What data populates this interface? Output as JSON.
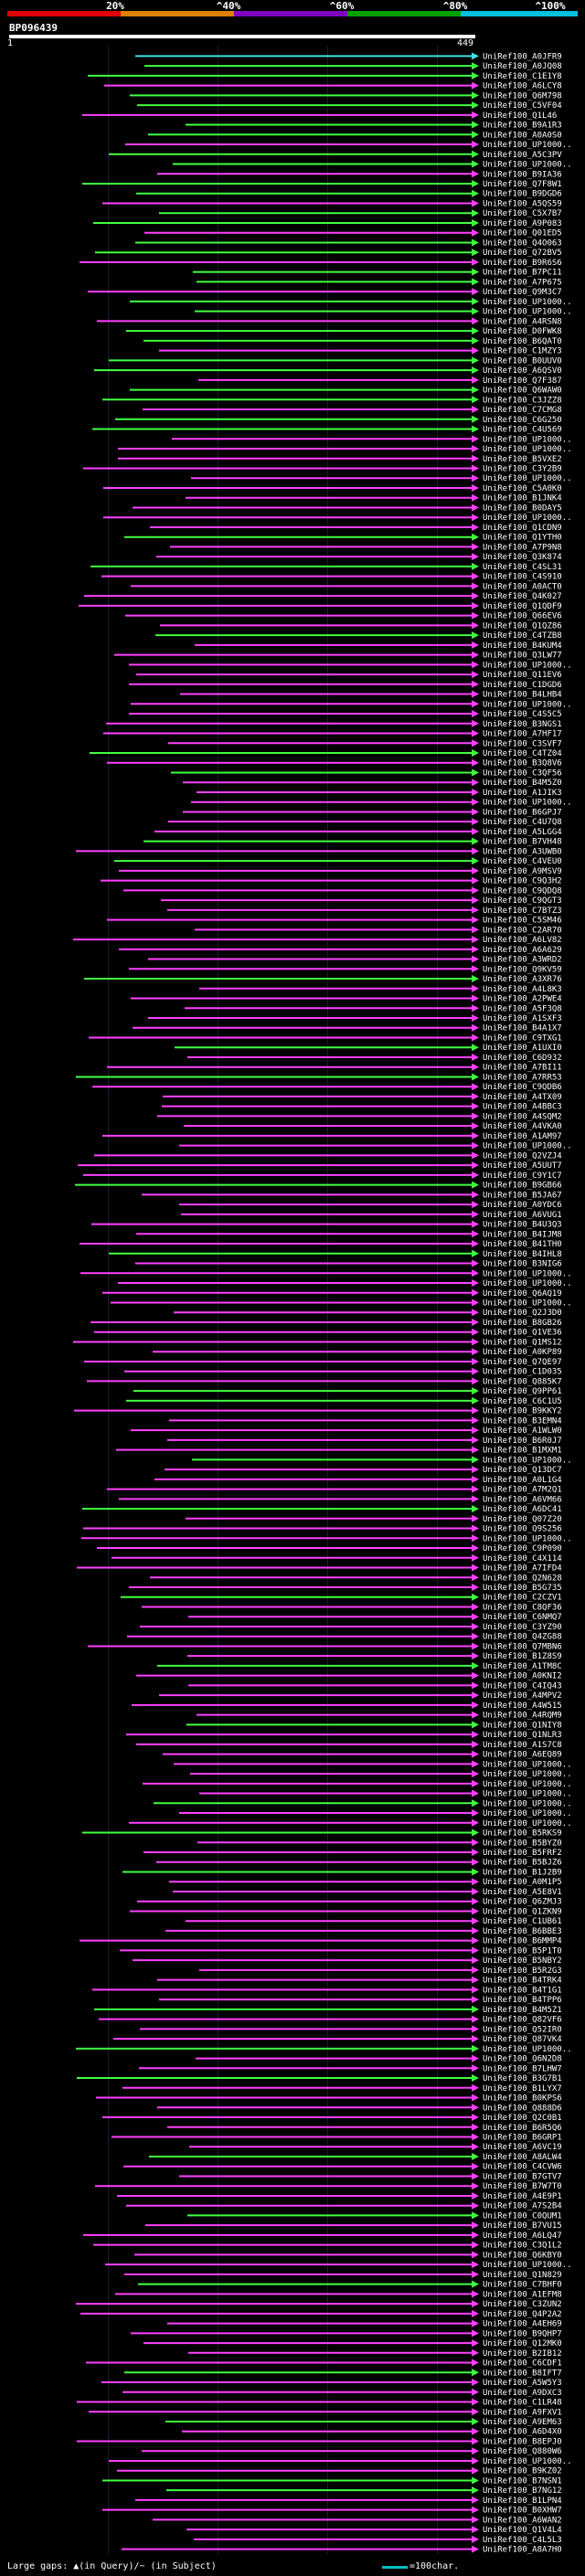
{
  "query": {
    "name": "BP096439",
    "start": "1",
    "end": "449"
  },
  "scale": {
    "labels": [
      "20%",
      "^40%",
      "^60%",
      "^80%",
      "^100%"
    ],
    "colors": [
      "#e00000",
      "#e08000",
      "#8000c0",
      "#00a000",
      "#00c0e0"
    ]
  },
  "legend": {
    "text": "Large gaps: ▲(in Query)/~ (in Subject)",
    "scale_text": "=100char."
  },
  "colors": {
    "magenta": "#ff40ff",
    "green": "#40ff40",
    "cyan": "#40e0e0",
    "text": "#ffffff"
  },
  "hits": [
    "UniRef100_A0JFR9",
    "UniRef100_A0JQ08",
    "UniRef100_C1E1Y8",
    "UniRef100_A6LCY8",
    "UniRef100_Q6M798",
    "UniRef100_C5VF04",
    "UniRef100_Q1L46",
    "UniRef100_B9A1R3",
    "UniRef100_A0A0S0",
    "UniRef100_UP1000..",
    "UniRef100_A5C3PV",
    "UniRef100_UP1000..",
    "UniRef100_B9IA36",
    "UniRef100_Q7F8W1",
    "UniRef100_B9DGD6",
    "UniRef100_A5QS59",
    "UniRef100_C5X7B7",
    "UniRef100_A9P083",
    "UniRef100_Q01ED5",
    "UniRef100_Q4O063",
    "UniRef100_Q72BV5",
    "UniRef100_B9R6S6",
    "UniRef100_B7PC11",
    "UniRef100_A7P675",
    "UniRef100_Q9M3C7",
    "UniRef100_UP1000..",
    "UniRef100_UP1000..",
    "UniRef100_A4RSN8",
    "UniRef100_D0FWK8",
    "UniRef100_B6QAT0",
    "UniRef100_C1MZY3",
    "UniRef100_B0UUV0",
    "UniRef100_A6QSV0",
    "UniRef100_Q7F387",
    "UniRef100_Q6WAW0",
    "UniRef100_C3JZZ8",
    "UniRef100_C7CMG8",
    "UniRef100_C6G250",
    "UniRef100_C4U569",
    "UniRef100_UP1000..",
    "UniRef100_UP1000..",
    "UniRef100_B5VXE2",
    "UniRef100_C3Y2B9",
    "UniRef100_UP1000..",
    "UniRef100_C5A0K0",
    "UniRef100_B1JNK4",
    "UniRef100_B0DAY5",
    "UniRef100_UP1000..",
    "UniRef100_Q1CDN9",
    "UniRef100_Q1YTH0",
    "UniRef100_A7P9N8",
    "UniRef100_Q3K874",
    "UniRef100_C4SL31",
    "UniRef100_C4S910",
    "UniRef100_A0ACT0",
    "UniRef100_Q4K027",
    "UniRef100_Q1QDF9",
    "UniRef100_Q66EV6",
    "UniRef100_Q1QZ86",
    "UniRef100_C4TZB8",
    "UniRef100_B4KUM4",
    "UniRef100_Q3LW77",
    "UniRef100_UP1000..",
    "UniRef100_Q11EV6",
    "UniRef100_C1DGD6",
    "UniRef100_B4LHB4",
    "UniRef100_UP1000..",
    "UniRef100_C4S5C5",
    "UniRef100_B3NGS1",
    "UniRef100_A7HF17",
    "UniRef100_C3SVF7",
    "UniRef100_C4TZ04",
    "UniRef100_B3Q8V6",
    "UniRef100_C3QF56",
    "UniRef100_B4M5Z0",
    "UniRef100_A1JIK3",
    "UniRef100_UP1000..",
    "UniRef100_B6GPJ7",
    "UniRef100_C4U7Q8",
    "UniRef100_A5LGG4",
    "UniRef100_B7VH48",
    "UniRef100_A3UWB0",
    "UniRef100_C4VEU0",
    "UniRef100_A9MSV9",
    "UniRef100_C9Q3H2",
    "UniRef100_C9QDQ8",
    "UniRef100_C9QGT3",
    "UniRef100_C7BTZ3",
    "UniRef100_C5SM46",
    "UniRef100_C2AR70",
    "UniRef100_A6LV82",
    "UniRef100_A6A629",
    "UniRef100_A3WRD2",
    "UniRef100_Q9KV59",
    "UniRef100_A3XR76",
    "UniRef100_A4L8K3",
    "UniRef100_A2PWE4",
    "UniRef100_A5F3Q8",
    "UniRef100_A1SXF3",
    "UniRef100_B4A1X7",
    "UniRef100_C9TXG1",
    "UniRef100_A1UXI0",
    "UniRef100_C6D932",
    "UniRef100_A7BI11",
    "UniRef100_A7RR53",
    "UniRef100_C9QDB6",
    "UniRef100_A4TX09",
    "UniRef100_A4BBC3",
    "UniRef100_A4SQM2",
    "UniRef100_A4VKA0",
    "UniRef100_A1AM97",
    "UniRef100_UP1000..",
    "UniRef100_Q2VZJ4",
    "UniRef100_A5UUT7",
    "UniRef100_C9Y1C7",
    "UniRef100_B9GB66",
    "UniRef100_B5JA67",
    "UniRef100_A0YDC6",
    "UniRef100_A6VUG1",
    "UniRef100_B4U3Q3",
    "UniRef100_B4IJM8",
    "UniRef100_B41TH0",
    "UniRef100_B4IHL8",
    "UniRef100_B3NIG6",
    "UniRef100_UP1000..",
    "UniRef100_UP1000..",
    "UniRef100_Q6AQ19",
    "UniRef100_UP1000..",
    "UniRef100_Q2J3D0",
    "UniRef100_B8GB26",
    "UniRef100_Q1VE36",
    "UniRef100_Q1MS12",
    "UniRef100_A0KP89",
    "UniRef100_Q7QE97",
    "UniRef100_C1D035",
    "UniRef100_Q885K7",
    "UniRef100_Q9PP61",
    "UniRef100_C6C1U5",
    "UniRef100_B9KKY2",
    "UniRef100_B3EMN4",
    "UniRef100_A1WLW0",
    "UniRef100_B6R0J7",
    "UniRef100_B1MXM1",
    "UniRef100_UP1000..",
    "UniRef100_Q13DC7",
    "UniRef100_A0L1G4",
    "UniRef100_A7M2Q1",
    "UniRef100_A6VM66",
    "UniRef100_A6DC41",
    "UniRef100_Q07Z20",
    "UniRef100_Q9S256",
    "UniRef100_UP1000..",
    "UniRef100_C9P090",
    "UniRef100_C4X114",
    "UniRef100_A7IFD4",
    "UniRef100_Q2N628",
    "UniRef100_B5G735",
    "UniRef100_C2CZV1",
    "UniRef100_C8QF36",
    "UniRef100_C6NMQ7",
    "UniRef100_C3YZ90",
    "UniRef100_Q4ZG88",
    "UniRef100_Q7MBN6",
    "UniRef100_B1Z8S9",
    "UniRef100_A1TM8C",
    "UniRef100_A0KNI2",
    "UniRef100_C4IQ43",
    "UniRef100_A4MPV2",
    "UniRef100_A4W515",
    "UniRef100_A4RQM9",
    "UniRef100_Q1NIY8",
    "UniRef100_Q1NLR3",
    "UniRef100_A1S7C8",
    "UniRef100_A6EQ89",
    "UniRef100_UP1000..",
    "UniRef100_UP1000..",
    "UniRef100_UP1000..",
    "UniRef100_UP1000..",
    "UniRef100_UP1000..",
    "UniRef100_UP1000..",
    "UniRef100_UP1000..",
    "UniRef100_B5RKS9",
    "UniRef100_B5BYZ0",
    "UniRef100_B5FRF2",
    "UniRef100_B5BJZ6",
    "UniRef100_B1J2B9",
    "UniRef100_A0M1P5",
    "UniRef100_A5E8V1",
    "UniRef100_Q6ZMJ3",
    "UniRef100_Q1ZKN9",
    "UniRef100_C1UB61",
    "UniRef100_B6BBE3",
    "UniRef100_B6MMP4",
    "UniRef100_B5P1T0",
    "UniRef100_B5NBY2",
    "UniRef100_B5R2G3",
    "UniRef100_B4TRK4",
    "UniRef100_B4T1G1",
    "UniRef100_B4TPP6",
    "UniRef100_B4M5Z1",
    "UniRef100_Q82VF6",
    "UniRef100_Q52IR0",
    "UniRef100_Q87VK4",
    "UniRef100_UP1000..",
    "UniRef100_Q6N2D8",
    "UniRef100_B7LHW7",
    "UniRef100_B3G7B1",
    "UniRef100_B1LYX7",
    "UniRef100_B0KPS6",
    "UniRef100_Q888D6",
    "UniRef100_Q2C0B1",
    "UniRef100_B6R5Q6",
    "UniRef100_B6GRP1",
    "UniRef100_A6VC19",
    "UniRef100_A8ALW4",
    "UniRef100_C4CVW6",
    "UniRef100_B7GTV7",
    "UniRef100_B7W7T0",
    "UniRef100_A4E9P1",
    "UniRef100_A7S2B4",
    "UniRef100_C0QUM1",
    "UniRef100_B7VU15",
    "UniRef100_A6LQ47",
    "UniRef100_C3Q1L2",
    "UniRef100_Q6KBY0",
    "UniRef100_UP1000..",
    "UniRef100_Q1N829",
    "UniRef100_C7BHF0",
    "UniRef100_A1EFM8",
    "UniRef100_C3ZUN2",
    "UniRef100_Q4P2A2",
    "UniRef100_A4EH69",
    "UniRef100_B9QHP7",
    "UniRef100_Q12MK0",
    "UniRef100_B2IB12",
    "UniRef100_C6CDF1",
    "UniRef100_B8IFT7",
    "UniRef100_A5W5Y3",
    "UniRef100_A9DXC3",
    "UniRef100_C1LR48",
    "UniRef100_A9FXV1",
    "UniRef100_A9EM63",
    "UniRef100_A6D4X0",
    "UniRef100_B8EPJ0",
    "UniRef100_Q880W6",
    "UniRef100_UP1000..",
    "UniRef100_B9KZ02",
    "UniRef100_B7NSN1",
    "UniRef100_B7NG12",
    "UniRef100_B1LPN4",
    "UniRef100_B0XHW7",
    "UniRef100_A6WAN2",
    "UniRef100_Q1V4L4",
    "UniRef100_C4L5L3",
    "UniRef100_A8A7H0"
  ]
}
